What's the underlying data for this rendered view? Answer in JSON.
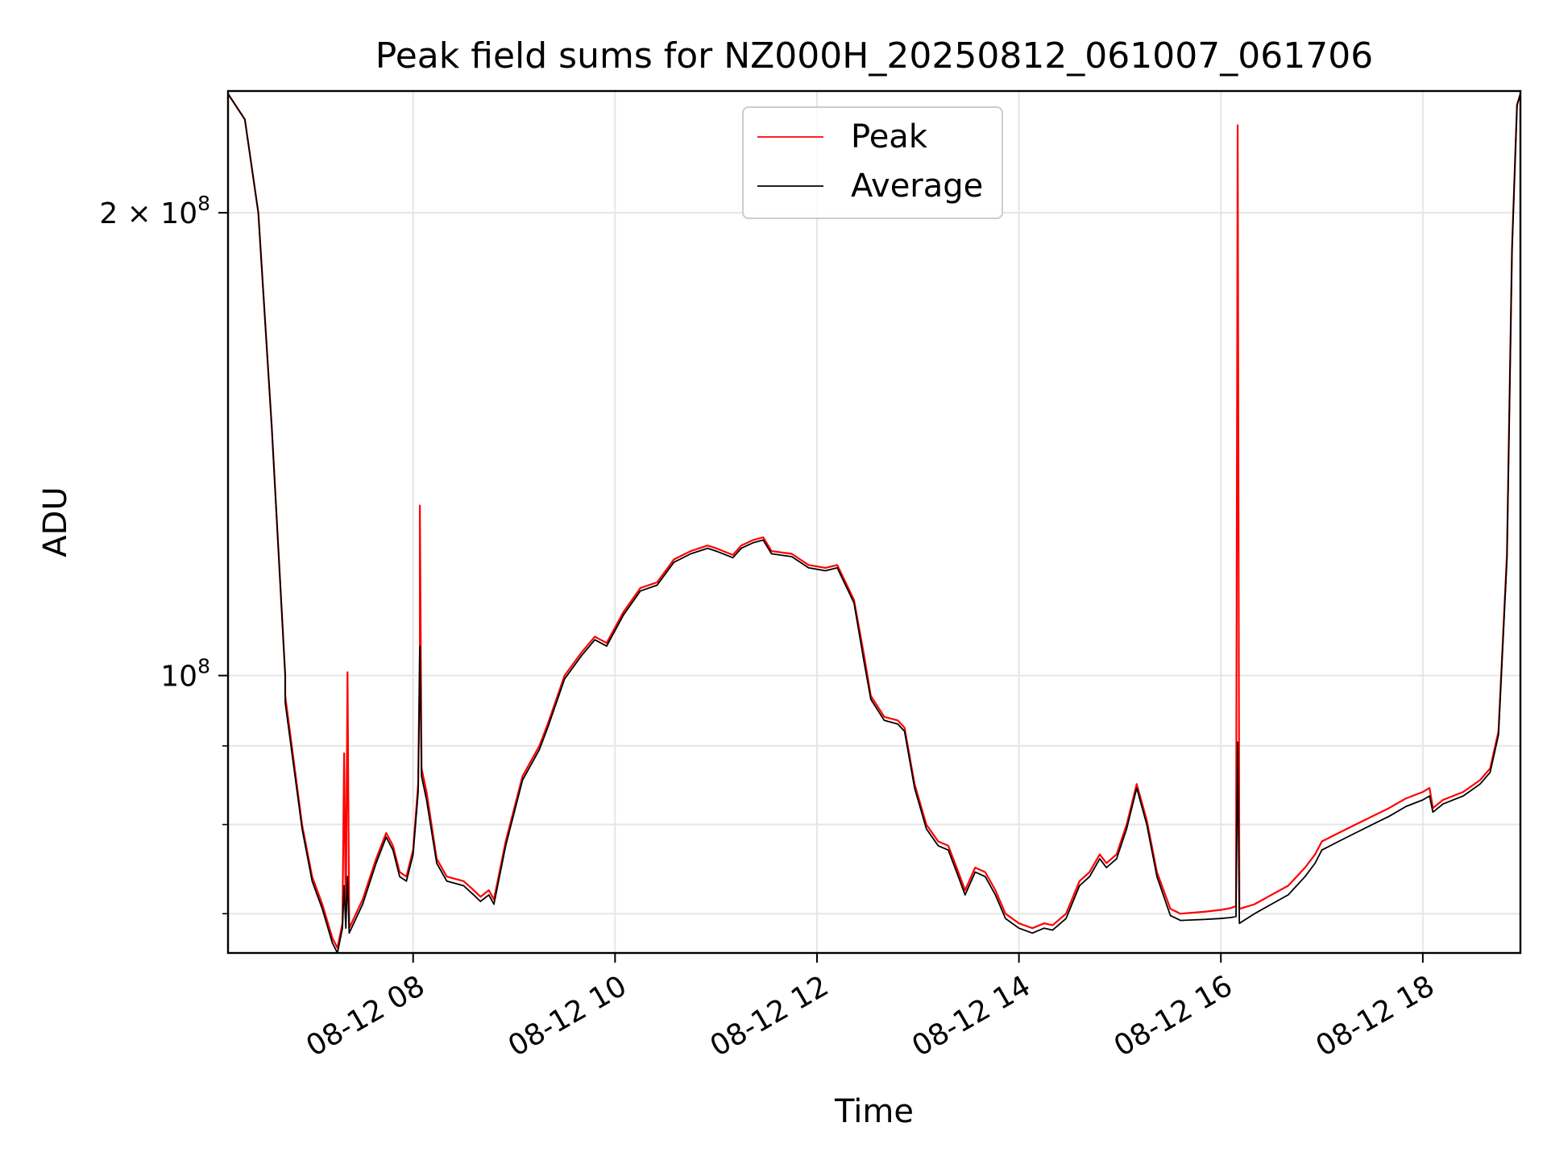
{
  "chart_data": {
    "type": "line",
    "title": "Peak field sums for NZ000H_20250812_061007_061706",
    "xlabel": "Time",
    "ylabel": "ADU",
    "xlim": [
      "08-12 06:10",
      "08-12 18:58"
    ],
    "ylim": [
      66000000,
      240000000
    ],
    "yscale": "log",
    "grid": true,
    "legend_position": "top-center",
    "x_tick_labels": [
      "08-12 08",
      "08-12 10",
      "08-12 12",
      "08-12 14",
      "08-12 16",
      "08-12 18"
    ],
    "x_ticks": [
      "08-12 08:00",
      "08-12 10:00",
      "08-12 12:00",
      "08-12 14:00",
      "08-12 16:00",
      "08-12 18:00"
    ],
    "y_major_ticks": [
      {
        "value": 100000000,
        "base": "10",
        "exp": "8",
        "prefix": ""
      },
      {
        "value": 200000000,
        "base": "10",
        "exp": "8",
        "prefix": "2 × "
      }
    ],
    "y_minor_ticks": [
      70000000,
      80000000,
      90000000
    ],
    "series": [
      {
        "name": "Peak",
        "color": "#ff0000",
        "points": [
          [
            "08-12 06:10",
            239000000
          ],
          [
            "08-12 06:20",
            230000000
          ],
          [
            "08-12 06:28",
            200000000
          ],
          [
            "08-12 06:36",
            145000000
          ],
          [
            "08-12 06:44",
            100000000
          ],
          [
            "08-12 06:44",
            97000000
          ],
          [
            "08-12 06:54",
            80000000
          ],
          [
            "08-12 07:00",
            74000000
          ],
          [
            "08-12 07:06",
            71000000
          ],
          [
            "08-12 07:12",
            67500000
          ],
          [
            "08-12 07:15",
            66500000
          ],
          [
            "08-12 07:18",
            69000000
          ],
          [
            "08-12 07:19",
            89000000
          ],
          [
            "08-12 07:20",
            69500000
          ],
          [
            "08-12 07:21",
            100500000
          ],
          [
            "08-12 07:22",
            68500000
          ],
          [
            "08-12 07:30",
            71500000
          ],
          [
            "08-12 07:38",
            76000000
          ],
          [
            "08-12 07:44",
            79000000
          ],
          [
            "08-12 07:48",
            77500000
          ],
          [
            "08-12 07:52",
            74500000
          ],
          [
            "08-12 07:56",
            74000000
          ],
          [
            "08-12 08:00",
            77000000
          ],
          [
            "08-12 08:03",
            85000000
          ],
          [
            "08-12 08:04",
            104500000
          ],
          [
            "08-12 08:04",
            129000000
          ],
          [
            "08-12 08:05",
            87000000
          ],
          [
            "08-12 08:08",
            84000000
          ],
          [
            "08-12 08:14",
            76000000
          ],
          [
            "08-12 08:20",
            74000000
          ],
          [
            "08-12 08:30",
            73500000
          ],
          [
            "08-12 08:36",
            72500000
          ],
          [
            "08-12 08:40",
            71800000
          ],
          [
            "08-12 08:45",
            72500000
          ],
          [
            "08-12 08:48",
            71500000
          ],
          [
            "08-12 08:55",
            78000000
          ],
          [
            "08-12 09:05",
            86000000
          ],
          [
            "08-12 09:15",
            90000000
          ],
          [
            "08-12 09:20",
            93000000
          ],
          [
            "08-12 09:30",
            100000000
          ],
          [
            "08-12 09:40",
            103500000
          ],
          [
            "08-12 09:48",
            106000000
          ],
          [
            "08-12 09:55",
            105000000
          ],
          [
            "08-12 10:05",
            110000000
          ],
          [
            "08-12 10:15",
            114000000
          ],
          [
            "08-12 10:25",
            115000000
          ],
          [
            "08-12 10:35",
            119000000
          ],
          [
            "08-12 10:45",
            120500000
          ],
          [
            "08-12 10:55",
            121500000
          ],
          [
            "08-12 11:00",
            121000000
          ],
          [
            "08-12 11:10",
            119800000
          ],
          [
            "08-12 11:15",
            121500000
          ],
          [
            "08-12 11:22",
            122500000
          ],
          [
            "08-12 11:28",
            123000000
          ],
          [
            "08-12 11:33",
            120500000
          ],
          [
            "08-12 11:45",
            120000000
          ],
          [
            "08-12 11:55",
            118000000
          ],
          [
            "08-12 12:05",
            117500000
          ],
          [
            "08-12 12:12",
            118000000
          ],
          [
            "08-12 12:22",
            112000000
          ],
          [
            "08-12 12:28",
            103000000
          ],
          [
            "08-12 12:32",
            97000000
          ],
          [
            "08-12 12:40",
            94000000
          ],
          [
            "08-12 12:48",
            93500000
          ],
          [
            "08-12 12:52",
            92500000
          ],
          [
            "08-12 12:58",
            85000000
          ],
          [
            "08-12 13:05",
            80000000
          ],
          [
            "08-12 13:12",
            78000000
          ],
          [
            "08-12 13:18",
            77500000
          ],
          [
            "08-12 13:24",
            74500000
          ],
          [
            "08-12 13:28",
            72500000
          ],
          [
            "08-12 13:34",
            75000000
          ],
          [
            "08-12 13:40",
            74500000
          ],
          [
            "08-12 13:46",
            72500000
          ],
          [
            "08-12 13:52",
            70000000
          ],
          [
            "08-12 14:00",
            69000000
          ],
          [
            "08-12 14:08",
            68500000
          ],
          [
            "08-12 14:15",
            69000000
          ],
          [
            "08-12 14:20",
            68800000
          ],
          [
            "08-12 14:28",
            70000000
          ],
          [
            "08-12 14:36",
            73500000
          ],
          [
            "08-12 14:42",
            74500000
          ],
          [
            "08-12 14:48",
            76500000
          ],
          [
            "08-12 14:52",
            75500000
          ],
          [
            "08-12 14:58",
            76500000
          ],
          [
            "08-12 15:04",
            80000000
          ],
          [
            "08-12 15:10",
            85000000
          ],
          [
            "08-12 15:16",
            80500000
          ],
          [
            "08-12 15:22",
            74500000
          ],
          [
            "08-12 15:30",
            70500000
          ],
          [
            "08-12 15:36",
            70000000
          ],
          [
            "08-12 15:50",
            70200000
          ],
          [
            "08-12 16:00",
            70400000
          ],
          [
            "08-12 16:06",
            70600000
          ],
          [
            "08-12 16:09",
            70800000
          ],
          [
            "08-12 16:10",
            228000000
          ],
          [
            "08-12 16:11",
            70500000
          ],
          [
            "08-12 16:20",
            71000000
          ],
          [
            "08-12 16:30",
            72000000
          ],
          [
            "08-12 16:40",
            73000000
          ],
          [
            "08-12 16:50",
            75000000
          ],
          [
            "08-12 16:56",
            76500000
          ],
          [
            "08-12 17:00",
            78000000
          ],
          [
            "08-12 17:10",
            79000000
          ],
          [
            "08-12 17:20",
            80000000
          ],
          [
            "08-12 17:30",
            81000000
          ],
          [
            "08-12 17:40",
            82000000
          ],
          [
            "08-12 17:50",
            83200000
          ],
          [
            "08-12 18:00",
            84000000
          ],
          [
            "08-12 18:04",
            84500000
          ],
          [
            "08-12 18:06",
            82000000
          ],
          [
            "08-12 18:12",
            83000000
          ],
          [
            "08-12 18:24",
            84000000
          ],
          [
            "08-12 18:34",
            85500000
          ],
          [
            "08-12 18:40",
            87000000
          ],
          [
            "08-12 18:45",
            92000000
          ],
          [
            "08-12 18:50",
            120000000
          ],
          [
            "08-12 18:53",
            190000000
          ],
          [
            "08-12 18:56",
            235000000
          ],
          [
            "08-12 18:58",
            239000000
          ]
        ]
      },
      {
        "name": "Average",
        "color": "#000000",
        "points": [
          [
            "08-12 06:10",
            239000000
          ],
          [
            "08-12 06:20",
            230000000
          ],
          [
            "08-12 06:28",
            200000000
          ],
          [
            "08-12 06:36",
            145000000
          ],
          [
            "08-12 06:44",
            100000000
          ],
          [
            "08-12 06:44",
            96000000
          ],
          [
            "08-12 06:54",
            79500000
          ],
          [
            "08-12 07:00",
            73500000
          ],
          [
            "08-12 07:06",
            70500000
          ],
          [
            "08-12 07:12",
            67000000
          ],
          [
            "08-12 07:15",
            66000000
          ],
          [
            "08-12 07:18",
            68500000
          ],
          [
            "08-12 07:19",
            73000000
          ],
          [
            "08-12 07:20",
            68500000
          ],
          [
            "08-12 07:21",
            74000000
          ],
          [
            "08-12 07:22",
            68000000
          ],
          [
            "08-12 07:30",
            71000000
          ],
          [
            "08-12 07:38",
            75500000
          ],
          [
            "08-12 07:44",
            78500000
          ],
          [
            "08-12 07:48",
            77000000
          ],
          [
            "08-12 07:52",
            74000000
          ],
          [
            "08-12 07:56",
            73500000
          ],
          [
            "08-12 08:00",
            76500000
          ],
          [
            "08-12 08:03",
            84000000
          ],
          [
            "08-12 08:04",
            104500000
          ],
          [
            "08-12 08:05",
            86000000
          ],
          [
            "08-12 08:08",
            83000000
          ],
          [
            "08-12 08:14",
            75500000
          ],
          [
            "08-12 08:20",
            73500000
          ],
          [
            "08-12 08:30",
            73000000
          ],
          [
            "08-12 08:36",
            72000000
          ],
          [
            "08-12 08:40",
            71300000
          ],
          [
            "08-12 08:45",
            72000000
          ],
          [
            "08-12 08:48",
            71000000
          ],
          [
            "08-12 08:55",
            77500000
          ],
          [
            "08-12 09:05",
            85500000
          ],
          [
            "08-12 09:15",
            89500000
          ],
          [
            "08-12 09:20",
            92500000
          ],
          [
            "08-12 09:30",
            99500000
          ],
          [
            "08-12 09:40",
            103000000
          ],
          [
            "08-12 09:48",
            105500000
          ],
          [
            "08-12 09:55",
            104500000
          ],
          [
            "08-12 10:05",
            109500000
          ],
          [
            "08-12 10:15",
            113500000
          ],
          [
            "08-12 10:25",
            114500000
          ],
          [
            "08-12 10:35",
            118500000
          ],
          [
            "08-12 10:45",
            120000000
          ],
          [
            "08-12 10:55",
            121000000
          ],
          [
            "08-12 11:00",
            120500000
          ],
          [
            "08-12 11:10",
            119300000
          ],
          [
            "08-12 11:15",
            121000000
          ],
          [
            "08-12 11:22",
            122000000
          ],
          [
            "08-12 11:28",
            122500000
          ],
          [
            "08-12 11:33",
            120000000
          ],
          [
            "08-12 11:45",
            119500000
          ],
          [
            "08-12 11:55",
            117500000
          ],
          [
            "08-12 12:05",
            117000000
          ],
          [
            "08-12 12:12",
            117500000
          ],
          [
            "08-12 12:22",
            111500000
          ],
          [
            "08-12 12:28",
            102000000
          ],
          [
            "08-12 12:32",
            96500000
          ],
          [
            "08-12 12:40",
            93500000
          ],
          [
            "08-12 12:48",
            93000000
          ],
          [
            "08-12 12:52",
            92000000
          ],
          [
            "08-12 12:58",
            84500000
          ],
          [
            "08-12 13:05",
            79500000
          ],
          [
            "08-12 13:12",
            77500000
          ],
          [
            "08-12 13:18",
            77000000
          ],
          [
            "08-12 13:24",
            74000000
          ],
          [
            "08-12 13:28",
            72000000
          ],
          [
            "08-12 13:34",
            74500000
          ],
          [
            "08-12 13:40",
            74000000
          ],
          [
            "08-12 13:46",
            72000000
          ],
          [
            "08-12 13:52",
            69500000
          ],
          [
            "08-12 14:00",
            68500000
          ],
          [
            "08-12 14:08",
            68000000
          ],
          [
            "08-12 14:15",
            68500000
          ],
          [
            "08-12 14:20",
            68300000
          ],
          [
            "08-12 14:28",
            69500000
          ],
          [
            "08-12 14:36",
            73000000
          ],
          [
            "08-12 14:42",
            74000000
          ],
          [
            "08-12 14:48",
            76000000
          ],
          [
            "08-12 14:52",
            75000000
          ],
          [
            "08-12 14:58",
            76000000
          ],
          [
            "08-12 15:04",
            79500000
          ],
          [
            "08-12 15:10",
            84500000
          ],
          [
            "08-12 15:16",
            80000000
          ],
          [
            "08-12 15:22",
            74000000
          ],
          [
            "08-12 15:30",
            69800000
          ],
          [
            "08-12 15:36",
            69300000
          ],
          [
            "08-12 15:50",
            69400000
          ],
          [
            "08-12 16:00",
            69500000
          ],
          [
            "08-12 16:06",
            69600000
          ],
          [
            "08-12 16:09",
            69700000
          ],
          [
            "08-12 16:10",
            90500000
          ],
          [
            "08-12 16:11",
            69000000
          ],
          [
            "08-12 16:20",
            70000000
          ],
          [
            "08-12 16:30",
            71000000
          ],
          [
            "08-12 16:40",
            72000000
          ],
          [
            "08-12 16:50",
            74000000
          ],
          [
            "08-12 16:56",
            75500000
          ],
          [
            "08-12 17:00",
            77000000
          ],
          [
            "08-12 17:10",
            78000000
          ],
          [
            "08-12 17:20",
            79000000
          ],
          [
            "08-12 17:30",
            80000000
          ],
          [
            "08-12 17:40",
            81000000
          ],
          [
            "08-12 17:50",
            82200000
          ],
          [
            "08-12 18:00",
            83000000
          ],
          [
            "08-12 18:04",
            83500000
          ],
          [
            "08-12 18:06",
            81500000
          ],
          [
            "08-12 18:12",
            82500000
          ],
          [
            "08-12 18:24",
            83500000
          ],
          [
            "08-12 18:34",
            85000000
          ],
          [
            "08-12 18:40",
            86500000
          ],
          [
            "08-12 18:45",
            91500000
          ],
          [
            "08-12 18:50",
            119000000
          ],
          [
            "08-12 18:53",
            189000000
          ],
          [
            "08-12 18:56",
            235000000
          ],
          [
            "08-12 18:58",
            239000000
          ]
        ]
      }
    ]
  }
}
